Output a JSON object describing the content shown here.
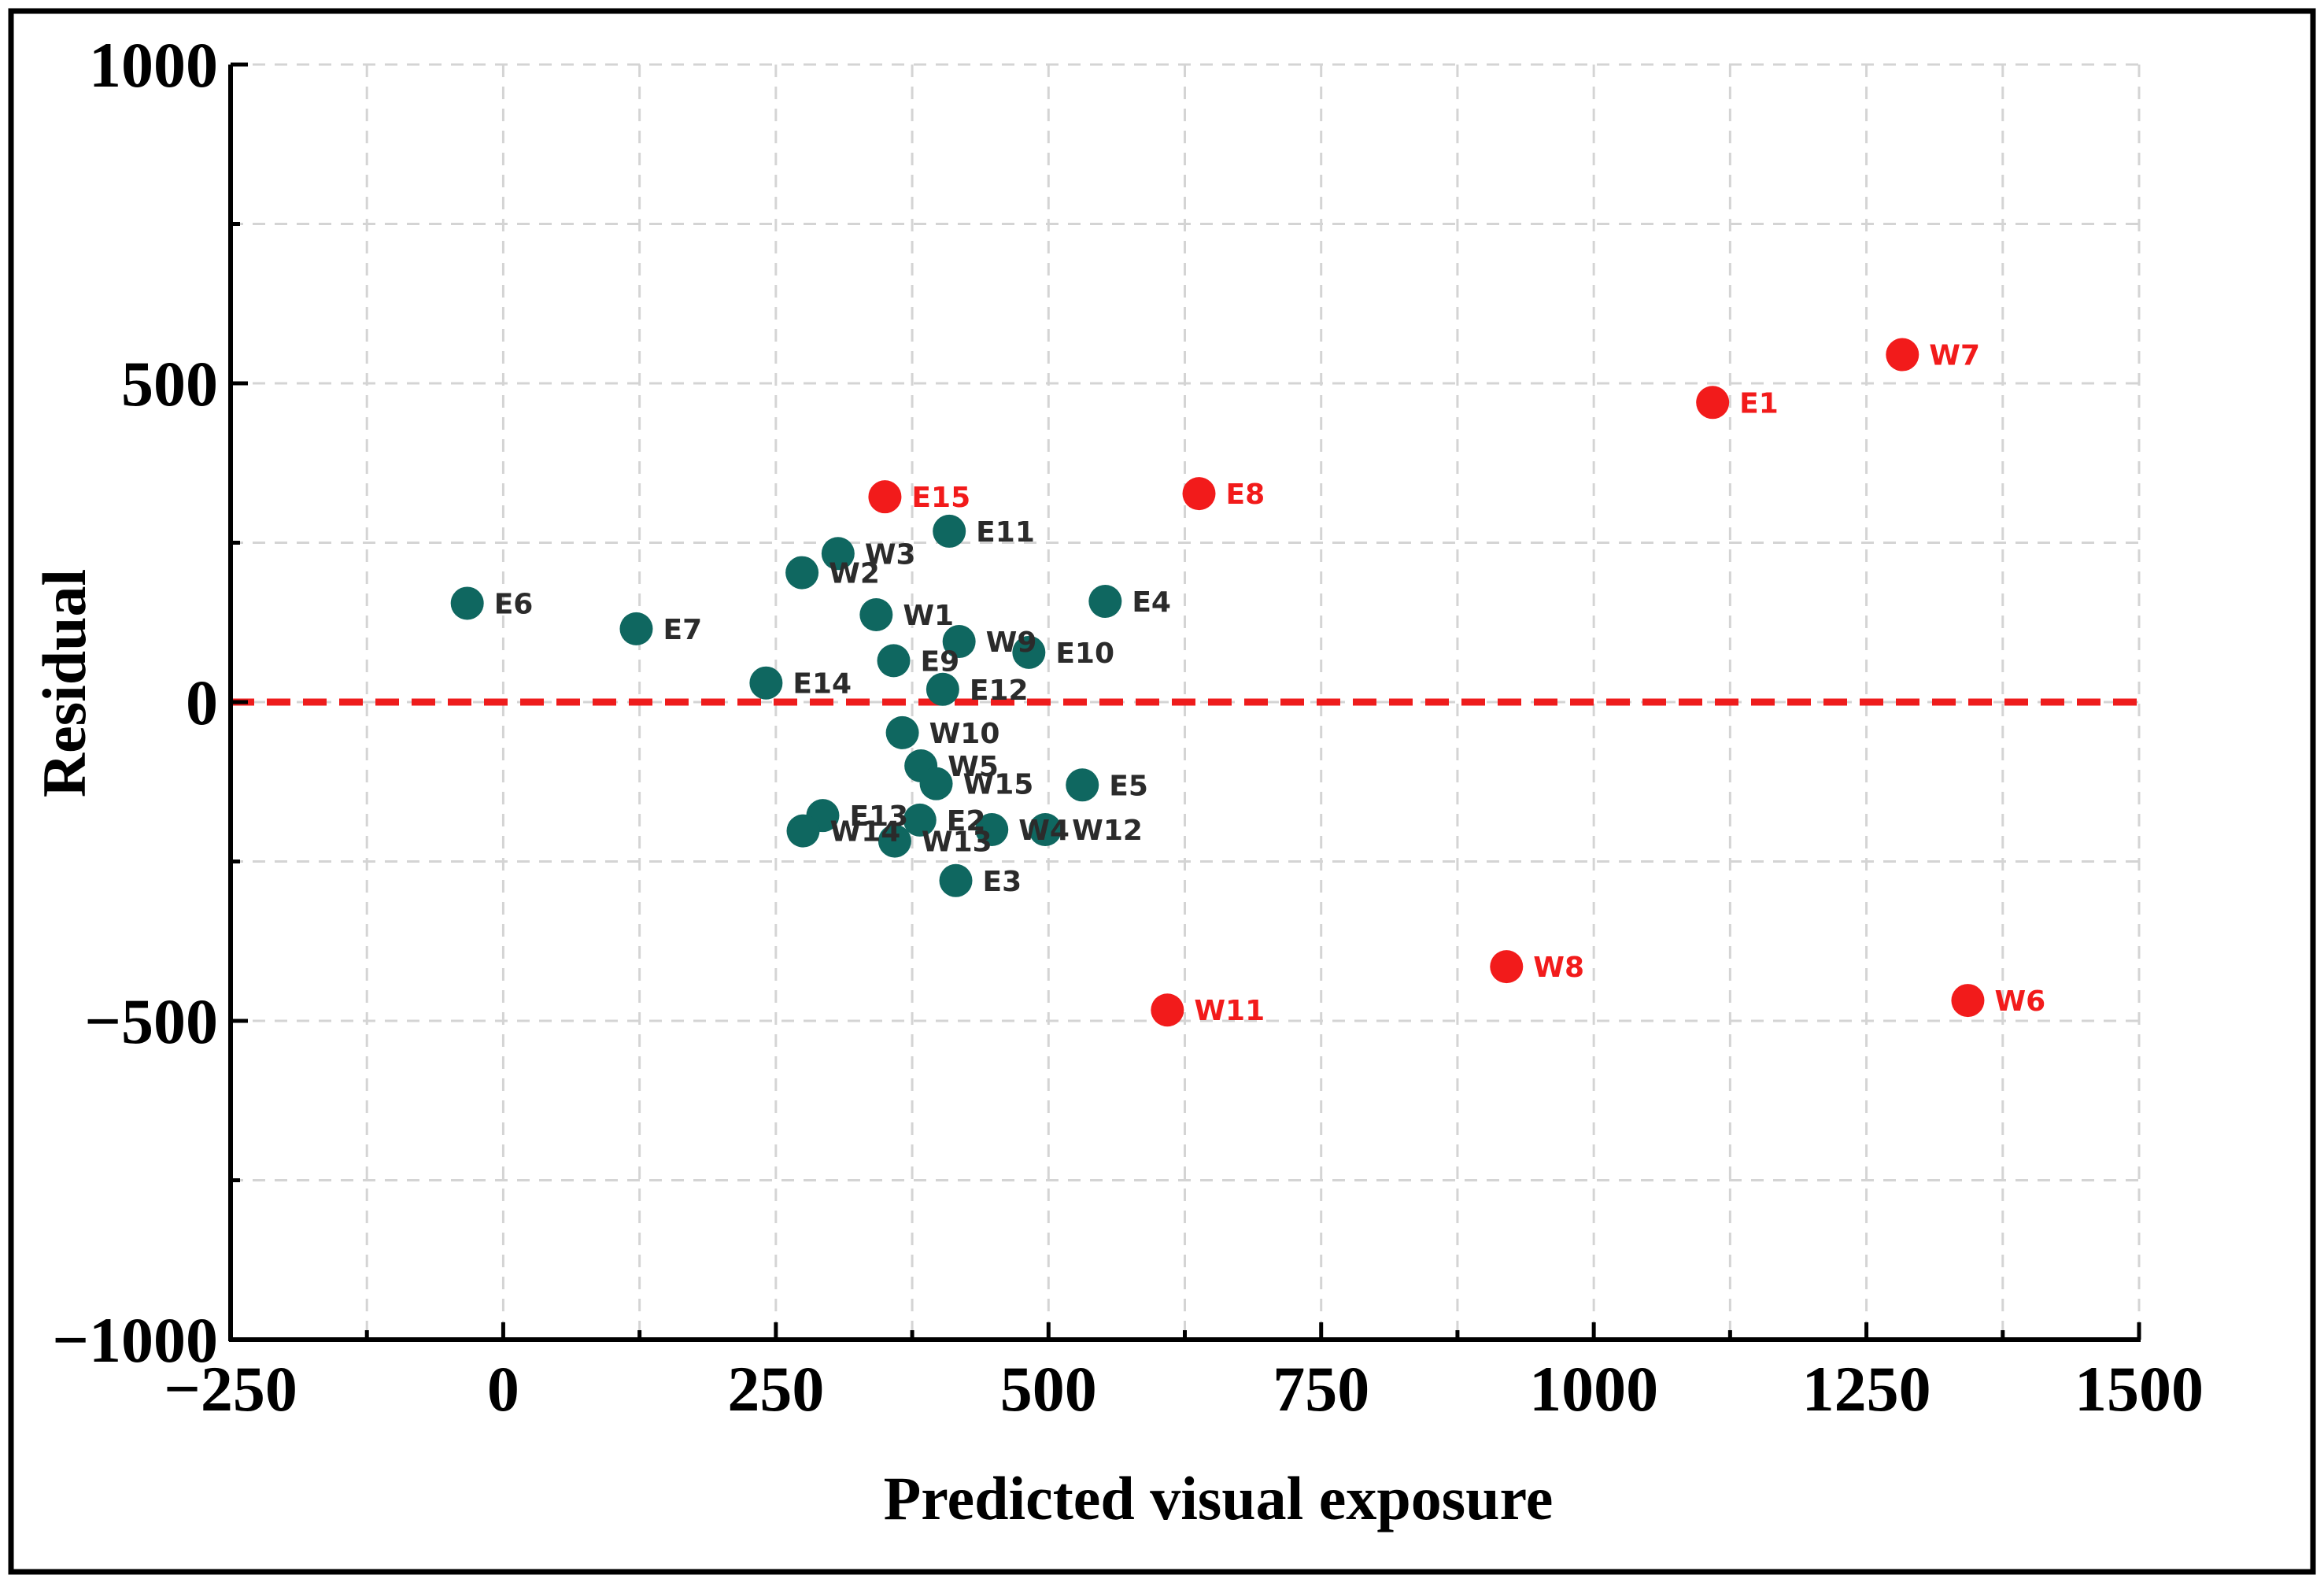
{
  "chart_data": {
    "type": "scatter",
    "title": "",
    "xlabel": "Predicted visual exposure",
    "ylabel": "Residual",
    "xlim": [
      -250,
      1500
    ],
    "ylim": [
      -1000,
      1000
    ],
    "x_ticks": [
      -250,
      0,
      250,
      500,
      750,
      1000,
      1250,
      1500
    ],
    "x_tick_labels": [
      "−250",
      "0",
      "250",
      "500",
      "750",
      "1000",
      "1250",
      "1500"
    ],
    "y_ticks": [
      -1000,
      -500,
      0,
      500,
      1000
    ],
    "y_tick_labels": [
      "−1000",
      "−500",
      "0",
      "500",
      "1000"
    ],
    "x_grid_step": 125,
    "y_grid_step": 250,
    "grid": true,
    "reference_line": {
      "y": 0,
      "color": "#ee1c1c",
      "style": "dashed"
    },
    "colors": {
      "normal": "#0f6760",
      "outlier": "#f21b1b",
      "label_normal": "#2b2b2b",
      "label_outlier": "#f21b1b"
    },
    "series": [
      {
        "name": "normal",
        "points": [
          {
            "label": "E6",
            "x": -33,
            "y": 155
          },
          {
            "label": "E7",
            "x": 122,
            "y": 115
          },
          {
            "label": "E14",
            "x": 241,
            "y": 30
          },
          {
            "label": "W2",
            "x": 274,
            "y": 203
          },
          {
            "label": "W3",
            "x": 307,
            "y": 233
          },
          {
            "label": "W1",
            "x": 342,
            "y": 137
          },
          {
            "label": "E9",
            "x": 358,
            "y": 65
          },
          {
            "label": "E11",
            "x": 409,
            "y": 268
          },
          {
            "label": "W9",
            "x": 418,
            "y": 95
          },
          {
            "label": "E12",
            "x": 403,
            "y": 20
          },
          {
            "label": "E10",
            "x": 482,
            "y": 78
          },
          {
            "label": "E4",
            "x": 552,
            "y": 158
          },
          {
            "label": "W10",
            "x": 366,
            "y": -48
          },
          {
            "label": "W5",
            "x": 383,
            "y": -100
          },
          {
            "label": "W15",
            "x": 397,
            "y": -128
          },
          {
            "label": "E5",
            "x": 531,
            "y": -130
          },
          {
            "label": "E13",
            "x": 293,
            "y": -178
          },
          {
            "label": "E2",
            "x": 382,
            "y": -185
          },
          {
            "label": "W4",
            "x": 448,
            "y": -200
          },
          {
            "label": "W12",
            "x": 497,
            "y": -200
          },
          {
            "label": "W14",
            "x": 275,
            "y": -202
          },
          {
            "label": "W13",
            "x": 359,
            "y": -218
          },
          {
            "label": "E3",
            "x": 415,
            "y": -280
          }
        ]
      },
      {
        "name": "outlier",
        "points": [
          {
            "label": "E15",
            "x": 350,
            "y": 322
          },
          {
            "label": "E8",
            "x": 638,
            "y": 327
          },
          {
            "label": "E1",
            "x": 1109,
            "y": 470
          },
          {
            "label": "W7",
            "x": 1283,
            "y": 545
          },
          {
            "label": "W11",
            "x": 609,
            "y": -483
          },
          {
            "label": "W8",
            "x": 920,
            "y": -415
          },
          {
            "label": "W6",
            "x": 1343,
            "y": -468
          }
        ]
      }
    ]
  }
}
